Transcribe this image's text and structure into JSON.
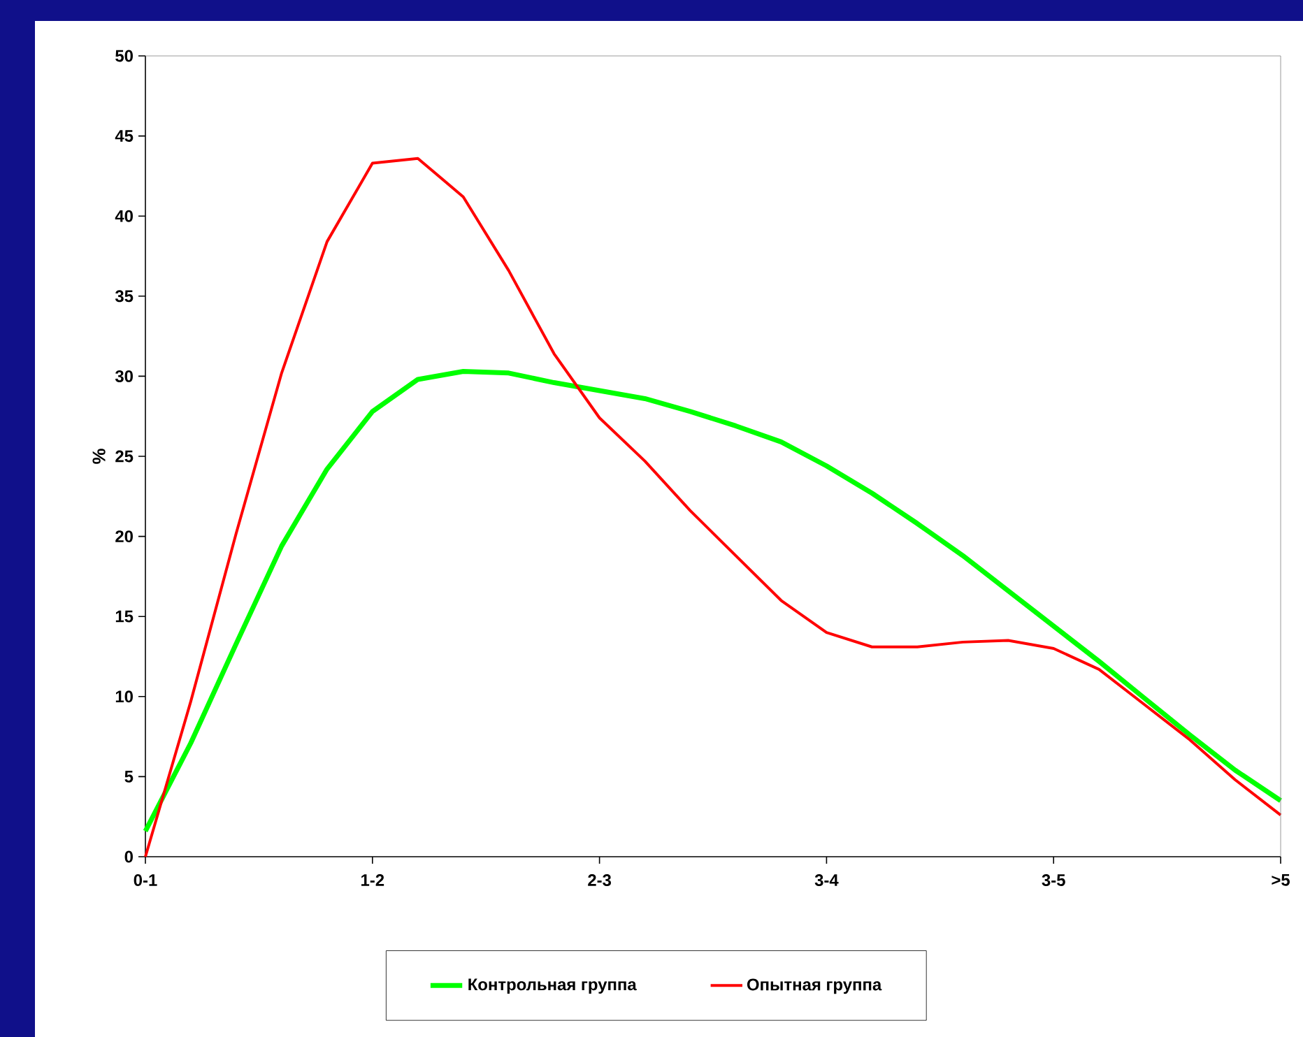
{
  "chart_data": {
    "type": "line",
    "ylabel": "%",
    "categories": [
      "0-1",
      null,
      null,
      null,
      null,
      "1-2",
      null,
      null,
      null,
      null,
      "2-3",
      null,
      null,
      null,
      null,
      "3-4",
      null,
      null,
      null,
      null,
      "3-5",
      null,
      null,
      null,
      null,
      ">5"
    ],
    "ylim": [
      0,
      50
    ],
    "yticks": [
      0,
      5,
      10,
      15,
      20,
      25,
      30,
      35,
      40,
      45,
      50
    ],
    "legend": "bottom",
    "marker": "none",
    "line_style": "solid",
    "series": [
      {
        "name": "Контрольная группа",
        "color": "#00ff00",
        "values": [
          1.6,
          7.1,
          13.3,
          19.4,
          24.2,
          27.8,
          29.8,
          30.3,
          30.2,
          29.6,
          29.1,
          28.6,
          27.8,
          26.9,
          25.9,
          24.4,
          22.7,
          20.8,
          18.8,
          16.6,
          14.4,
          12.2,
          9.9,
          7.6,
          5.4,
          3.5
        ]
      },
      {
        "name": "Опытная группа",
        "color": "#ff0000",
        "values": [
          0,
          9.7,
          20.2,
          30.2,
          38.4,
          43.3,
          43.6,
          41.2,
          36.6,
          31.4,
          27.4,
          24.7,
          21.6,
          18.8,
          16.0,
          14.0,
          13.1,
          13.1,
          13.4,
          13.5,
          13.0,
          11.7,
          9.5,
          7.3,
          4.8,
          2.6
        ]
      }
    ]
  }
}
